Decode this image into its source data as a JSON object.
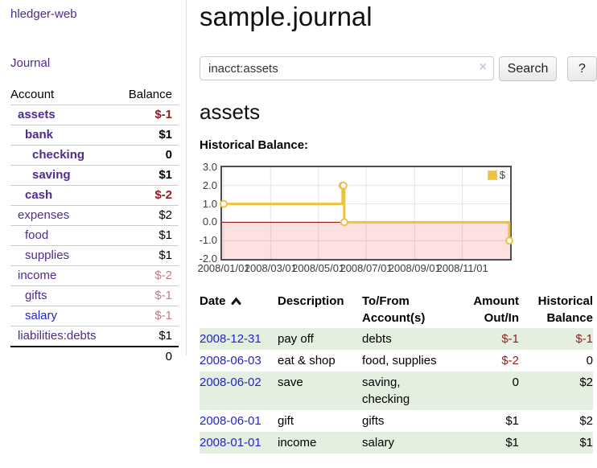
{
  "colors": {
    "link_purple": "#4f2b8f",
    "link_blue": "#2323cc",
    "negative_strong": "#961b1e",
    "negative_soft": "#bf7e82",
    "row_green": "#e4efe0",
    "series_gold": "#edc240",
    "negative_area_pink": "rgba(255,0,0,0.12)",
    "zero_line_red": "#8b0000",
    "chart_frame_gray": "#4d4d4d",
    "grid_gray": "#e4e4e4"
  },
  "brand": {
    "label": "hledger-web"
  },
  "sidebar": {
    "journal_link": "Journal",
    "accounts_table": {
      "headers": {
        "account": "Account",
        "balance": "Balance"
      },
      "rows": [
        {
          "name": "assets",
          "balance": "$-1"
        },
        {
          "name": "bank",
          "balance": "$1"
        },
        {
          "name": "checking",
          "balance": "0"
        },
        {
          "name": "saving",
          "balance": "$1"
        },
        {
          "name": "cash",
          "balance": "$-2"
        },
        {
          "name": "expenses",
          "balance": "$2"
        },
        {
          "name": "food",
          "balance": "$1"
        },
        {
          "name": "supplies",
          "balance": "$1"
        },
        {
          "name": "income",
          "balance": "$-2"
        },
        {
          "name": "gifts",
          "balance": "$-1"
        },
        {
          "name": "salary",
          "balance": "$-1"
        },
        {
          "name": "liabilities:debts",
          "balance": "$1"
        }
      ],
      "total": "0"
    }
  },
  "main": {
    "title": "sample.journal",
    "search": {
      "value": "inacct:assets",
      "clear_label": "×",
      "search_button": "Search",
      "help_button": "?"
    },
    "account_heading": "assets",
    "chart_title": "Historical Balance:"
  },
  "chart_data": {
    "type": "line",
    "subtype": "step-after",
    "title": "Historical Balance",
    "series": [
      {
        "name": "$",
        "points": [
          [
            "2008-01-01",
            1
          ],
          [
            "2008-06-01",
            2
          ],
          [
            "2008-06-02",
            2
          ],
          [
            "2008-06-03",
            0
          ],
          [
            "2008-12-31",
            -1
          ]
        ]
      }
    ],
    "x_range": [
      "2008-01-01",
      "2008-12-31"
    ],
    "ylim": [
      -2,
      3
    ],
    "yticks": [
      3,
      2,
      1,
      0,
      -1,
      -2
    ],
    "ytick_labels": [
      "3.0",
      "2.0",
      "1.0",
      "0.0",
      "-1.0",
      "-2.0"
    ],
    "xticks": [
      "2008/01/01",
      "2008/03/01",
      "2008/05/01",
      "2008/07/01",
      "2008/09/01",
      "2008/11/01"
    ],
    "legend": {
      "label": "$",
      "position": "top-right"
    },
    "grid": true,
    "negative_region_shaded": true
  },
  "register": {
    "columns": [
      "Date",
      "Description",
      "To/From Account(s)",
      "Amount Out/In",
      "Historical Balance"
    ],
    "sort": {
      "column": "Date",
      "direction": "ascending"
    },
    "rows": [
      {
        "date": "2008-12-31",
        "description": "pay off",
        "accounts": "debts",
        "amount": "$-1",
        "balance": "$-1"
      },
      {
        "date": "2008-06-03",
        "description": "eat & shop",
        "accounts": "food, supplies",
        "amount": "$-2",
        "balance": "0"
      },
      {
        "date": "2008-06-02",
        "description": "save",
        "accounts": "saving, checking",
        "amount": "0",
        "balance": "$2"
      },
      {
        "date": "2008-06-01",
        "description": "gift",
        "accounts": "gifts",
        "amount": "$1",
        "balance": "$2"
      },
      {
        "date": "2008-01-01",
        "description": "income",
        "accounts": "salary",
        "amount": "$1",
        "balance": "$1"
      }
    ]
  }
}
